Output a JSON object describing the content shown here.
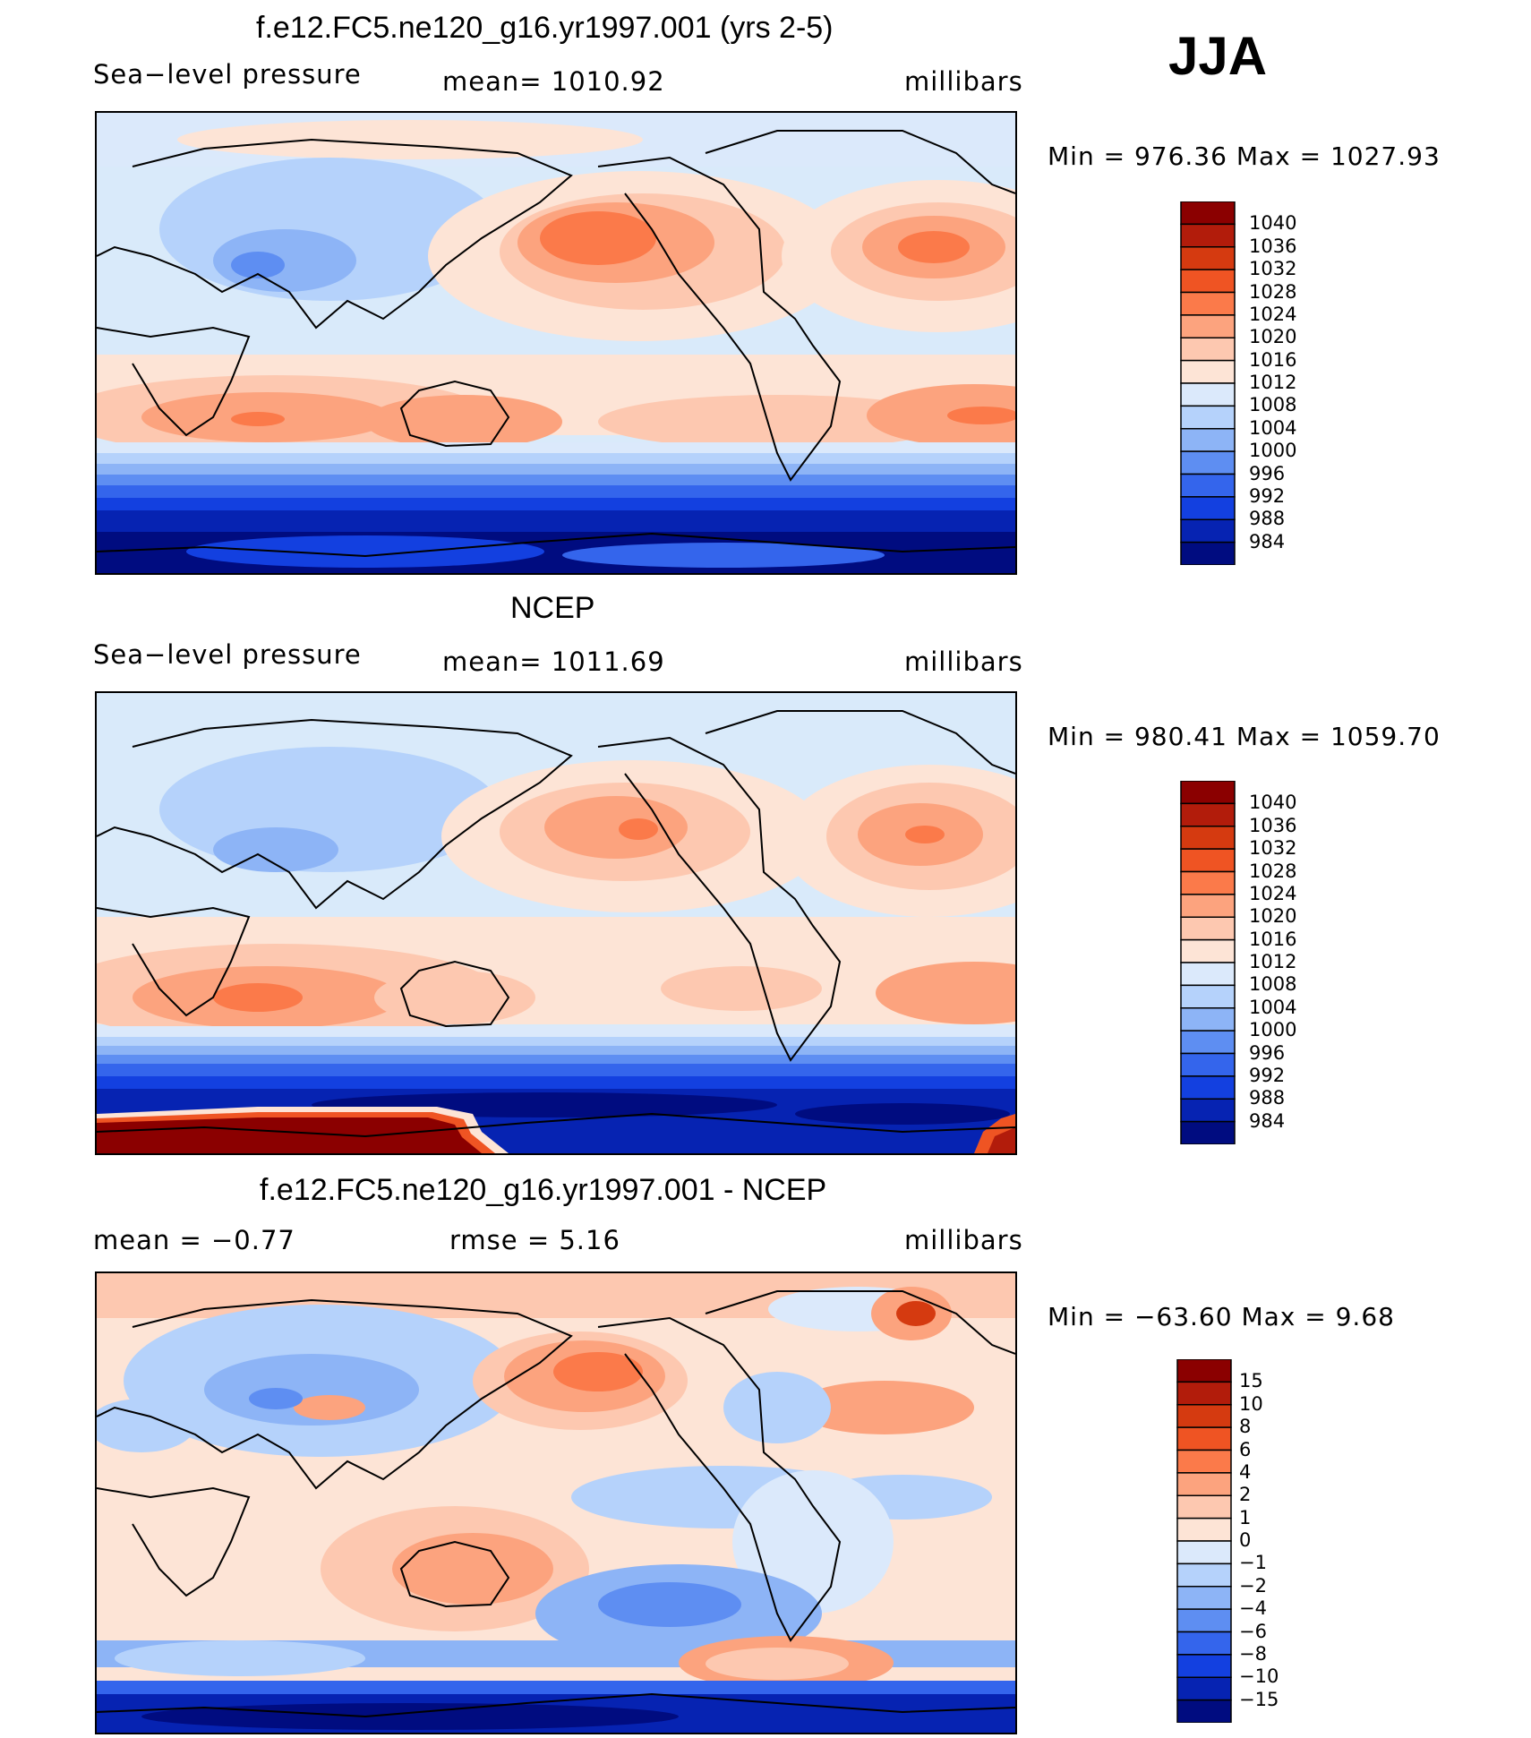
{
  "season": "JJA",
  "panels": [
    {
      "id": "model",
      "title": "f.e12.FC5.ne120_g16.yr1997.001 (yrs 2-5)",
      "left_label": "Sea−level pressure",
      "center_label": "mean=  1010.92",
      "units": "millibars",
      "minmax": "Min  =  976.36  Max  =  1027.93",
      "colorbar_levels": [
        "1040",
        "1036",
        "1032",
        "1028",
        "1024",
        "1020",
        "1016",
        "1012",
        "1008",
        "1004",
        "1000",
        "996",
        "992",
        "988",
        "984"
      ]
    },
    {
      "id": "obs",
      "title": "NCEP",
      "left_label": "Sea−level pressure",
      "center_label": "mean=  1011.69",
      "units": "millibars",
      "minmax": "Min  =  980.41  Max  =  1059.70",
      "colorbar_levels": [
        "1040",
        "1036",
        "1032",
        "1028",
        "1024",
        "1020",
        "1016",
        "1012",
        "1008",
        "1004",
        "1000",
        "996",
        "992",
        "988",
        "984"
      ]
    },
    {
      "id": "diff",
      "title": "f.e12.FC5.ne120_g16.yr1997.001 - NCEP",
      "left_label": "mean  =    −0.77",
      "center_label": "rmse  =     5.16",
      "units": "millibars",
      "minmax": "Min  =  −63.60  Max  =      9.68",
      "colorbar_levels": [
        "15",
        "10",
        "8",
        "6",
        "4",
        "2",
        "1",
        "0",
        "−1",
        "−2",
        "−4",
        "−6",
        "−8",
        "−10",
        "−15"
      ]
    }
  ],
  "colors": {
    "cb16": [
      "#8b0000",
      "#b21c0b",
      "#d53a10",
      "#ef5423",
      "#fb7a4a",
      "#fca37e",
      "#fdc8b0",
      "#fde4d6",
      "#dbe9fb",
      "#b5d2fb",
      "#8db4f6",
      "#5e8ef2",
      "#3465ec",
      "#1340e0",
      "#0623b2",
      "#000c80"
    ]
  }
}
